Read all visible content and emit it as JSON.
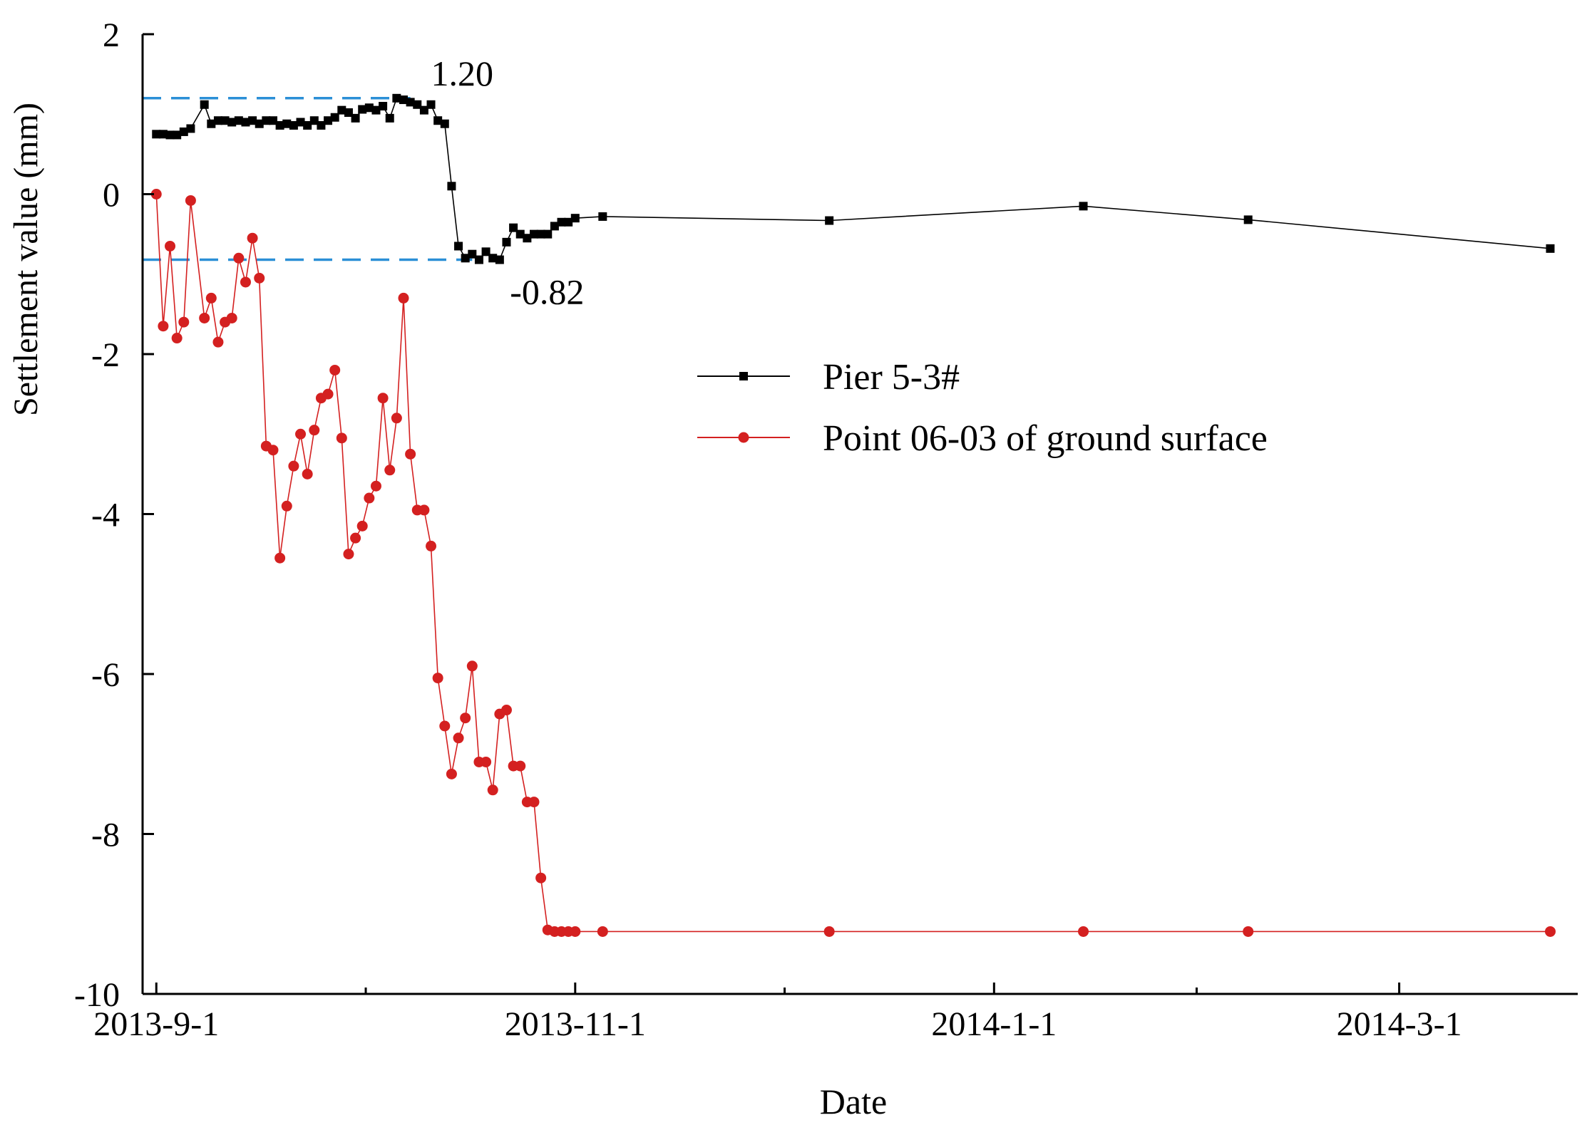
{
  "chart_data": {
    "type": "line",
    "xlabel": "Date",
    "ylabel": "Settlement value (mm)",
    "ylim": [
      -10,
      2
    ],
    "yticks": [
      2,
      0,
      -2,
      -4,
      -6,
      -8,
      -10
    ],
    "xlim": [
      -2,
      207
    ],
    "xticks": [
      {
        "pos": 0,
        "label": "2013-9-1"
      },
      {
        "pos": 61,
        "label": "2013-11-1"
      },
      {
        "pos": 122,
        "label": "2014-1-1"
      },
      {
        "pos": 181,
        "label": "2014-3-1"
      }
    ],
    "x_minor_ticks": [
      30.5,
      91.5,
      151.5
    ],
    "legend": {
      "position": "center-right"
    },
    "series": [
      {
        "name": "Pier 5-3#",
        "color": "#000000",
        "marker": "square",
        "x": [
          0,
          1,
          2,
          3,
          4,
          5,
          7,
          8,
          9,
          10,
          11,
          12,
          13,
          14,
          15,
          16,
          17,
          18,
          19,
          20,
          21,
          22,
          23,
          24,
          25,
          26,
          27,
          28,
          29,
          30,
          31,
          32,
          33,
          34,
          35,
          36,
          37,
          38,
          39,
          40,
          41,
          42,
          43,
          44,
          45,
          46,
          47,
          48,
          49,
          50,
          51,
          52,
          53,
          54,
          55,
          56,
          57,
          58,
          59,
          60,
          61,
          65,
          98,
          135,
          159,
          203
        ],
        "y": [
          0.75,
          0.75,
          0.74,
          0.74,
          0.78,
          0.82,
          1.12,
          0.88,
          0.92,
          0.92,
          0.9,
          0.92,
          0.9,
          0.92,
          0.88,
          0.92,
          0.92,
          0.86,
          0.88,
          0.86,
          0.9,
          0.86,
          0.92,
          0.86,
          0.92,
          0.96,
          1.05,
          1.02,
          0.95,
          1.06,
          1.08,
          1.05,
          1.1,
          0.95,
          1.2,
          1.18,
          1.15,
          1.12,
          1.05,
          1.12,
          0.92,
          0.88,
          0.1,
          -0.65,
          -0.8,
          -0.75,
          -0.82,
          -0.72,
          -0.8,
          -0.82,
          -0.6,
          -0.42,
          -0.5,
          -0.55,
          -0.5,
          -0.5,
          -0.5,
          -0.4,
          -0.35,
          -0.35,
          -0.3,
          -0.28,
          -0.33,
          -0.15,
          -0.32,
          -0.68
        ]
      },
      {
        "name": "Point 06-03 of ground surface",
        "color": "#d42020",
        "marker": "circle",
        "x": [
          0,
          1,
          2,
          3,
          4,
          5,
          7,
          8,
          9,
          10,
          11,
          12,
          13,
          14,
          15,
          16,
          17,
          18,
          19,
          20,
          21,
          22,
          23,
          24,
          25,
          26,
          27,
          28,
          29,
          30,
          31,
          32,
          33,
          34,
          35,
          36,
          37,
          38,
          39,
          40,
          41,
          42,
          43,
          44,
          45,
          46,
          47,
          48,
          49,
          50,
          51,
          52,
          53,
          54,
          55,
          56,
          57,
          58,
          59,
          60,
          61,
          65,
          98,
          135,
          159,
          203
        ],
        "y": [
          0.0,
          -1.65,
          -0.65,
          -1.8,
          -1.6,
          -0.08,
          -1.55,
          -1.3,
          -1.85,
          -1.6,
          -1.55,
          -0.8,
          -1.1,
          -0.55,
          -1.05,
          -3.15,
          -3.2,
          -4.55,
          -3.9,
          -3.4,
          -3.0,
          -3.5,
          -2.95,
          -2.55,
          -2.5,
          -2.2,
          -3.05,
          -4.5,
          -4.3,
          -4.15,
          -3.8,
          -3.65,
          -2.55,
          -3.45,
          -2.8,
          -1.3,
          -3.25,
          -3.95,
          -3.95,
          -4.4,
          -6.05,
          -6.65,
          -7.25,
          -6.8,
          -6.55,
          -5.9,
          -7.1,
          -7.1,
          -7.45,
          -6.5,
          -6.45,
          -7.15,
          -7.15,
          -7.6,
          -7.6,
          -8.55,
          -9.2,
          -9.22,
          -9.22,
          -9.22,
          -9.22,
          -9.22,
          -9.22,
          -9.22,
          -9.22,
          -9.22
        ]
      }
    ],
    "annotations": [
      {
        "text": "1.20",
        "x": 40,
        "y": 1.2
      },
      {
        "text": "-0.82",
        "x": 49,
        "y": -0.82
      }
    ],
    "reference_lines": [
      {
        "y": 1.2,
        "x_from": -2,
        "x_to": 37,
        "color": "#2b8fd6",
        "style": "dashed"
      },
      {
        "y": -0.82,
        "x_from": -2,
        "x_to": 46,
        "color": "#2b8fd6",
        "style": "dashed"
      }
    ]
  }
}
